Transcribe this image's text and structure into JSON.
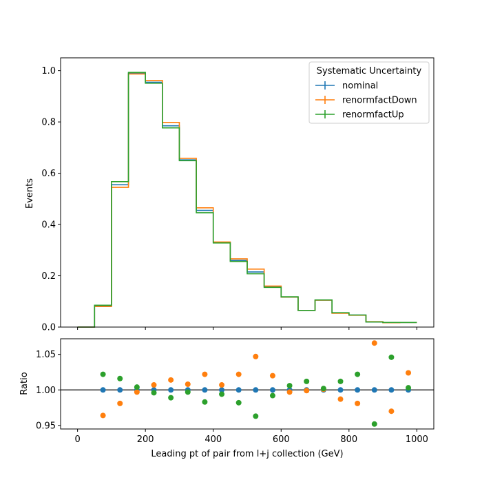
{
  "colors": {
    "nominal": "#1f77b4",
    "renormfactDown": "#ff7f0e",
    "renormfactUp": "#2ca02c",
    "axis": "#000000",
    "background": "#ffffff"
  },
  "chart_data": [
    {
      "type": "line",
      "drawstyle": "step",
      "panel": "main",
      "ylabel": "Events",
      "xlim": [
        -50,
        1050
      ],
      "ylim": [
        0,
        1.05
      ],
      "yticks": [
        "0.0",
        "0.2",
        "0.4",
        "0.6",
        "0.8",
        "1.0"
      ],
      "ytick_values": [
        0,
        0.2,
        0.4,
        0.6,
        0.8,
        1.0
      ],
      "bin_edges": [
        0,
        50,
        100,
        150,
        200,
        250,
        300,
        350,
        400,
        450,
        500,
        550,
        600,
        650,
        700,
        750,
        800,
        850,
        900,
        950,
        1000
      ],
      "legend": {
        "title": "Systematic Uncertainty",
        "placement": "top-right"
      },
      "series": [
        {
          "name": "nominal",
          "color": "#1f77b4",
          "values": [
            0.0,
            0.083,
            0.555,
            0.99,
            0.955,
            0.785,
            0.652,
            0.455,
            0.33,
            0.26,
            0.215,
            0.157,
            0.117,
            0.065,
            0.105,
            0.055,
            0.047,
            0.02,
            0.018,
            0.018
          ]
        },
        {
          "name": "renormfactDown",
          "color": "#ff7f0e",
          "values": [
            0.0,
            0.08,
            0.545,
            0.987,
            0.962,
            0.798,
            0.658,
            0.465,
            0.332,
            0.266,
            0.226,
            0.16,
            0.117,
            0.065,
            0.105,
            0.054,
            0.046,
            0.021,
            0.017,
            0.018
          ]
        },
        {
          "name": "renormfactUp",
          "color": "#2ca02c",
          "values": [
            0.0,
            0.085,
            0.567,
            0.993,
            0.951,
            0.777,
            0.649,
            0.446,
            0.328,
            0.256,
            0.208,
            0.155,
            0.118,
            0.065,
            0.106,
            0.056,
            0.047,
            0.02,
            0.018,
            0.018
          ]
        }
      ]
    },
    {
      "type": "scatter",
      "panel": "ratio",
      "xlabel": "Leading pt of pair from l+j collection (GeV)",
      "ylabel": "Ratio",
      "xlim": [
        -50,
        1050
      ],
      "ylim": [
        0.945,
        1.072
      ],
      "reference_line": 1.0,
      "xticks": [
        "0",
        "200",
        "400",
        "600",
        "800",
        "1000"
      ],
      "xtick_values": [
        0,
        200,
        400,
        600,
        800,
        1000
      ],
      "yticks": [
        "0.95",
        "1.00",
        "1.05"
      ],
      "ytick_values": [
        0.95,
        1.0,
        1.05
      ],
      "x": [
        75,
        125,
        175,
        225,
        275,
        325,
        375,
        425,
        475,
        525,
        575,
        625,
        675,
        725,
        775,
        825,
        875,
        925,
        975
      ],
      "series": [
        {
          "name": "nominal",
          "color": "#1f77b4",
          "values": [
            1.0,
            1.0,
            1.0,
            1.0,
            1.0,
            1.0,
            1.0,
            1.0,
            1.0,
            1.0,
            1.0,
            1.0,
            1.0,
            1.0,
            1.0,
            1.0,
            1.0,
            1.0,
            1.0
          ]
        },
        {
          "name": "renormfactDown",
          "color": "#ff7f0e",
          "values": [
            0.964,
            0.981,
            0.997,
            1.007,
            1.014,
            1.008,
            1.022,
            1.007,
            1.022,
            1.047,
            1.02,
            0.997,
            0.999,
            1.001,
            0.987,
            0.981,
            1.066,
            0.97,
            1.024
          ]
        },
        {
          "name": "renormfactUp",
          "color": "#2ca02c",
          "values": [
            1.022,
            1.016,
            1.004,
            0.996,
            0.989,
            0.997,
            0.983,
            0.994,
            0.982,
            0.963,
            0.992,
            1.006,
            1.012,
            1.002,
            1.012,
            1.022,
            0.952,
            1.046,
            1.003
          ]
        }
      ]
    }
  ]
}
